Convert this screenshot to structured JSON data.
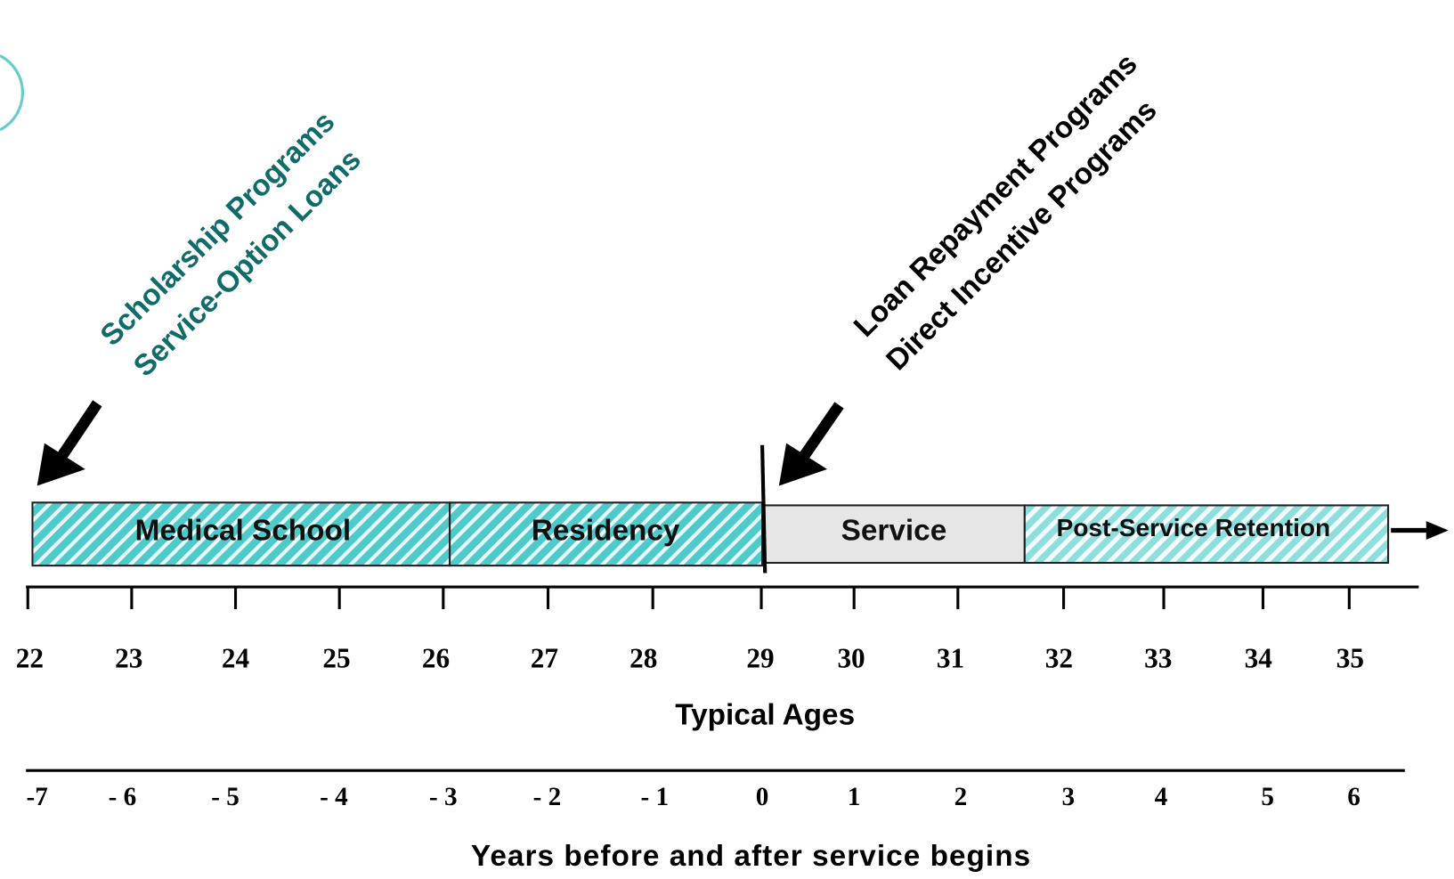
{
  "annotations": {
    "early": [
      "Scholarship Programs",
      "Service-Option Loans"
    ],
    "late": [
      "Loan Repayment Programs",
      "Direct Incentive Programs"
    ]
  },
  "phases": [
    "Medical School",
    "Residency",
    "Service",
    "Post-Service Retention"
  ],
  "ages": {
    "labels": [
      "22",
      "23",
      "24",
      "25",
      "26",
      "27",
      "28",
      "29",
      "30",
      "31",
      "32",
      "33",
      "34",
      "35"
    ],
    "title": "Typical Ages"
  },
  "years": {
    "labels": [
      "-7",
      "- 6",
      "- 5",
      "- 4",
      "- 3",
      "- 2",
      "- 1",
      "0",
      "1",
      "2",
      "3",
      "4",
      "5",
      "6"
    ],
    "title": "Years before and after service begins"
  }
}
